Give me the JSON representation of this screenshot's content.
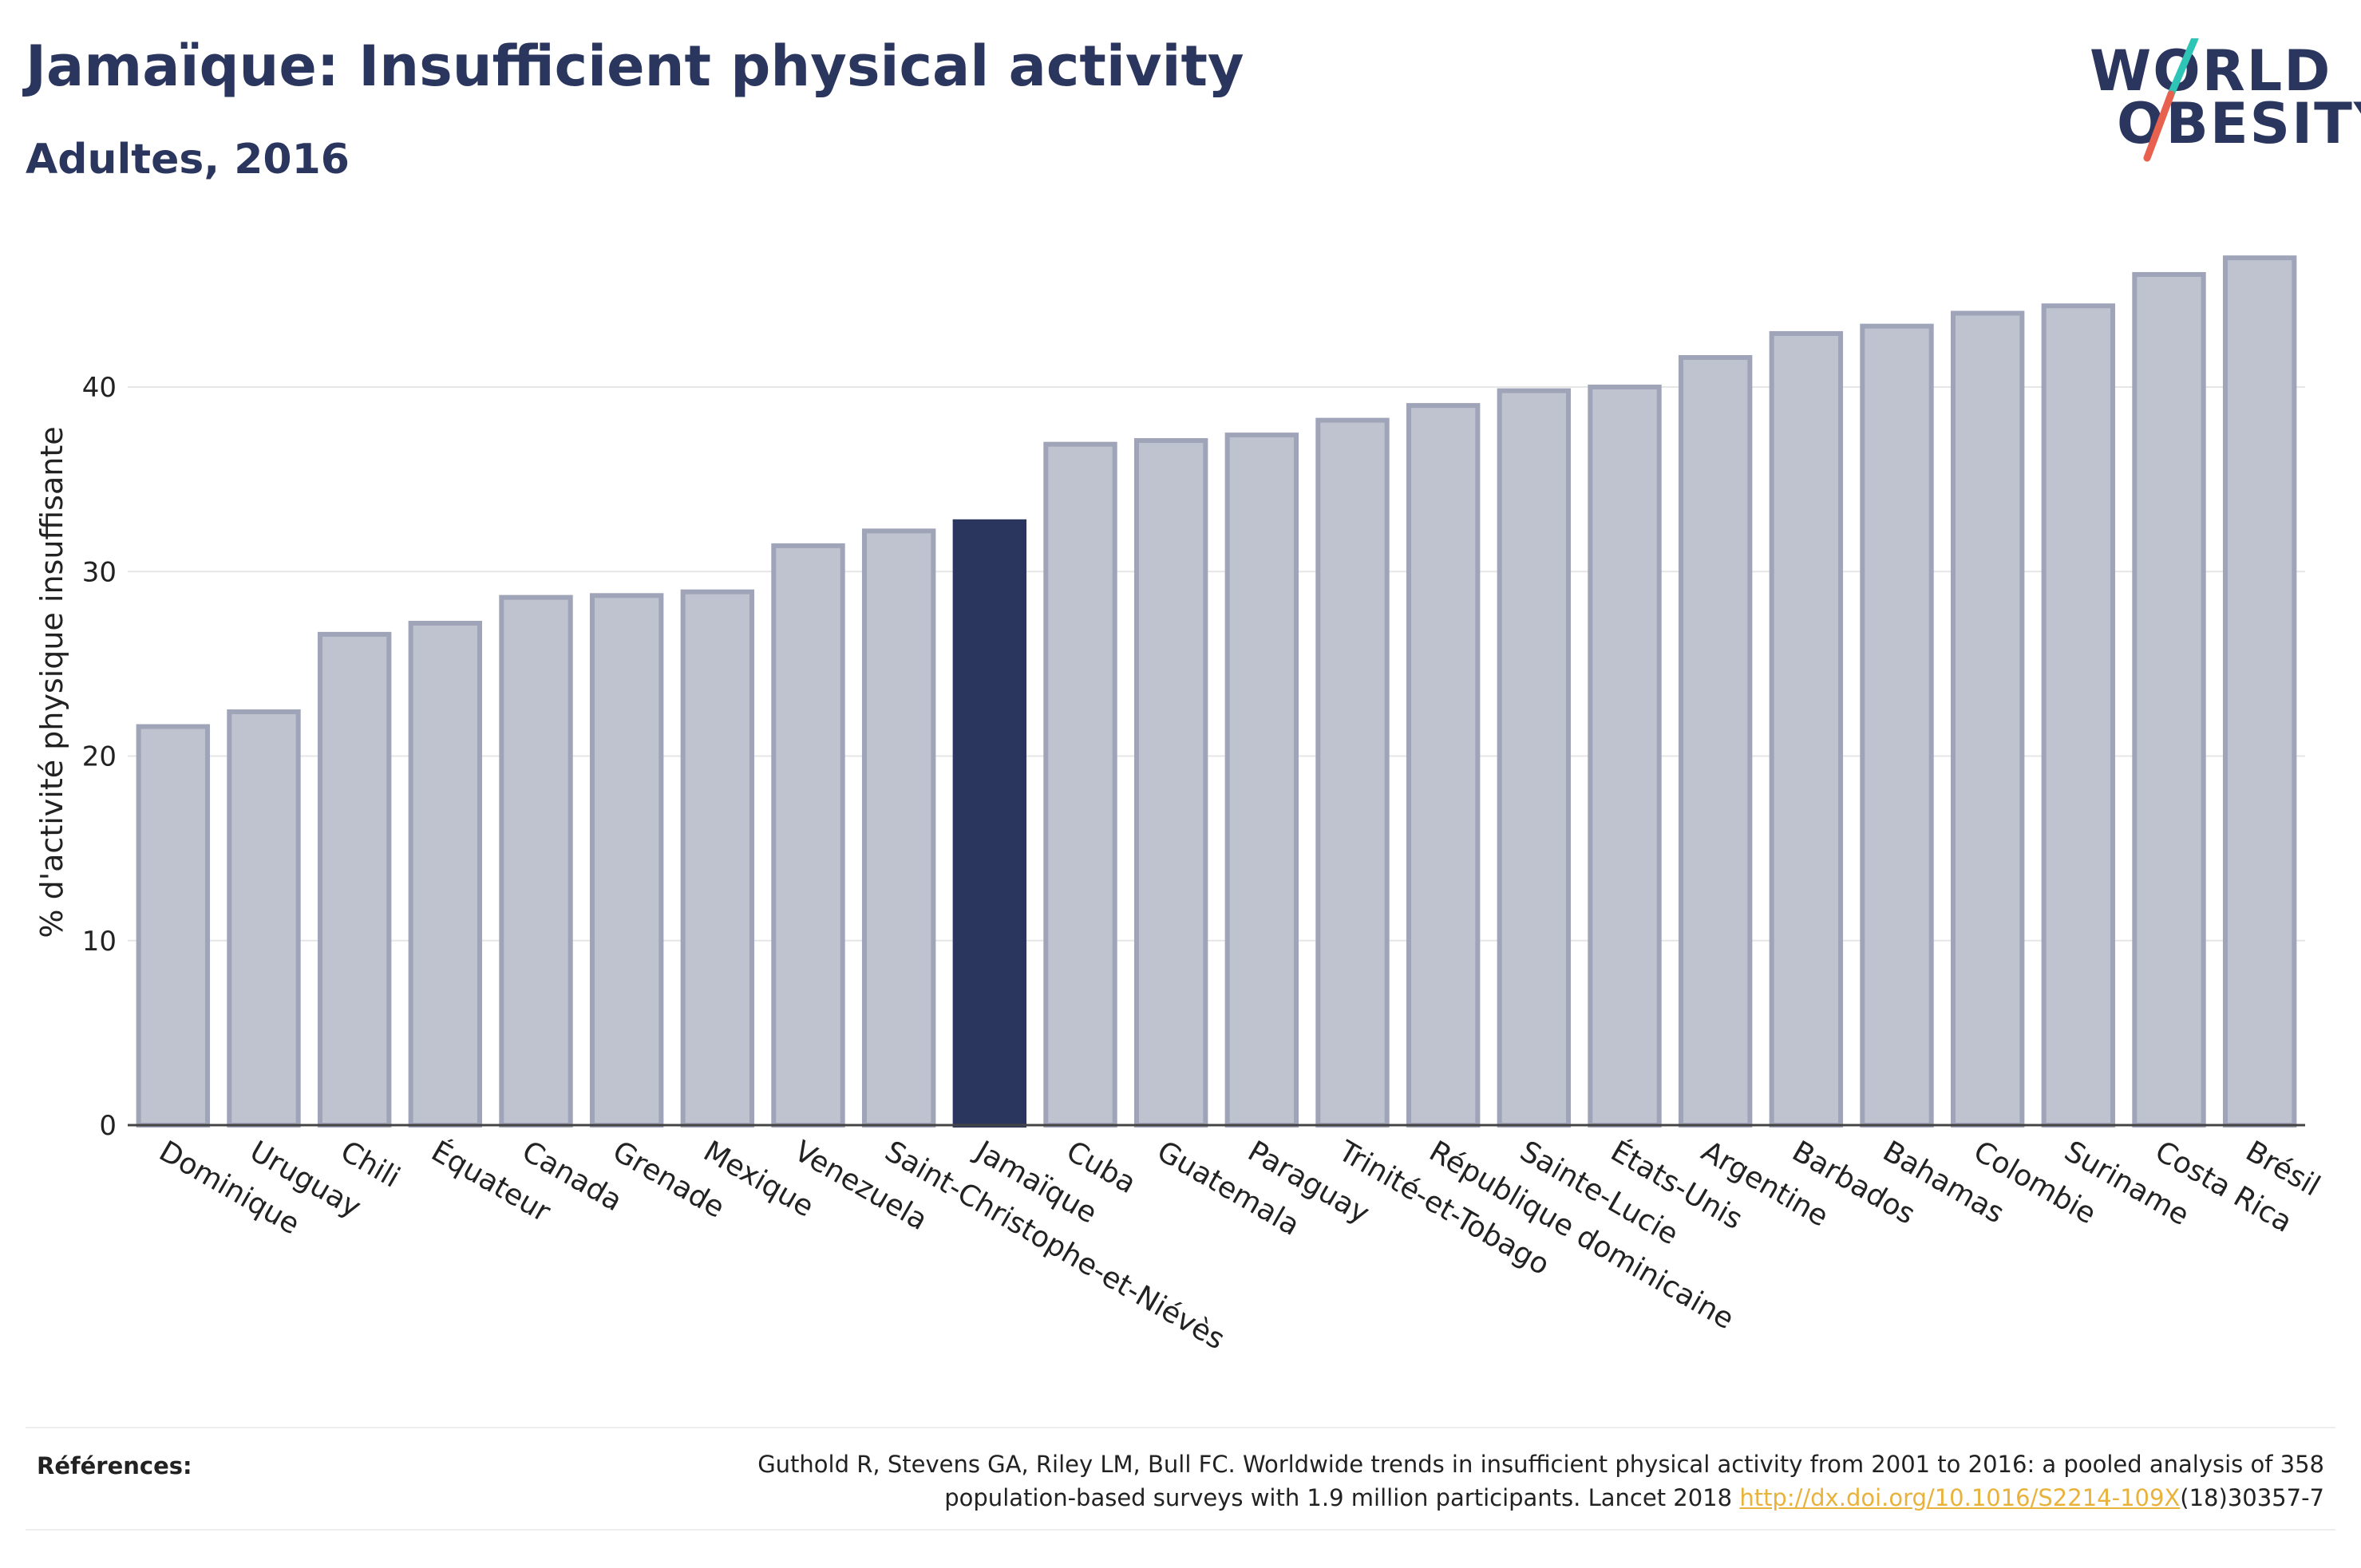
{
  "header": {
    "title": "Jamaïque: Insufficient physical activity",
    "subtitle": "Adultes, 2016"
  },
  "logo": {
    "line1": "WORLD",
    "line2": "OBESITY",
    "accent_colors": [
      "#2ec4b6",
      "#e8614f"
    ]
  },
  "chart_data": {
    "type": "bar",
    "title": "Jamaïque: Insufficient physical activity",
    "subtitle": "Adultes, 2016",
    "xlabel": "",
    "ylabel": "% d'activité physique insuffisante",
    "ylim": [
      0,
      48
    ],
    "yticks": [
      0,
      10,
      20,
      30,
      40
    ],
    "grid": true,
    "highlight": "Jamaïque",
    "colors": {
      "default": "#bfc2cf",
      "default_border": "#9fa4b8",
      "highlight": "#2b365f"
    },
    "categories": [
      "Dominique",
      "Uruguay",
      "Chili",
      "Équateur",
      "Canada",
      "Grenade",
      "Mexique",
      "Venezuela",
      "Saint-Christophe-et-Niévès",
      "Jamaïque",
      "Cuba",
      "Guatemala",
      "Paraguay",
      "Trinité-et-Tobago",
      "République dominicaine",
      "Sainte-Lucie",
      "États-Unis",
      "Argentine",
      "Barbados",
      "Bahamas",
      "Colombie",
      "Suriname",
      "Costa Rica",
      "Brésil"
    ],
    "values": [
      21.6,
      22.4,
      26.6,
      27.2,
      28.6,
      28.7,
      28.9,
      31.4,
      32.2,
      32.7,
      36.9,
      37.1,
      37.4,
      38.2,
      39.0,
      39.8,
      40.0,
      41.6,
      42.9,
      43.3,
      44.0,
      44.4,
      46.1,
      47.0
    ]
  },
  "references": {
    "label": "Références:",
    "text_line1": "Guthold R, Stevens GA, Riley LM, Bull FC. Worldwide trends in insufficient physical activity from 2001 to 2016: a pooled analysis of 358",
    "text_line2_before": "population-based surveys with 1.9 million participants. Lancet 2018 ",
    "link": "http://dx.doi.org/10.1016/S2214-109X",
    "text_line2_after": "(18)30357-7"
  }
}
